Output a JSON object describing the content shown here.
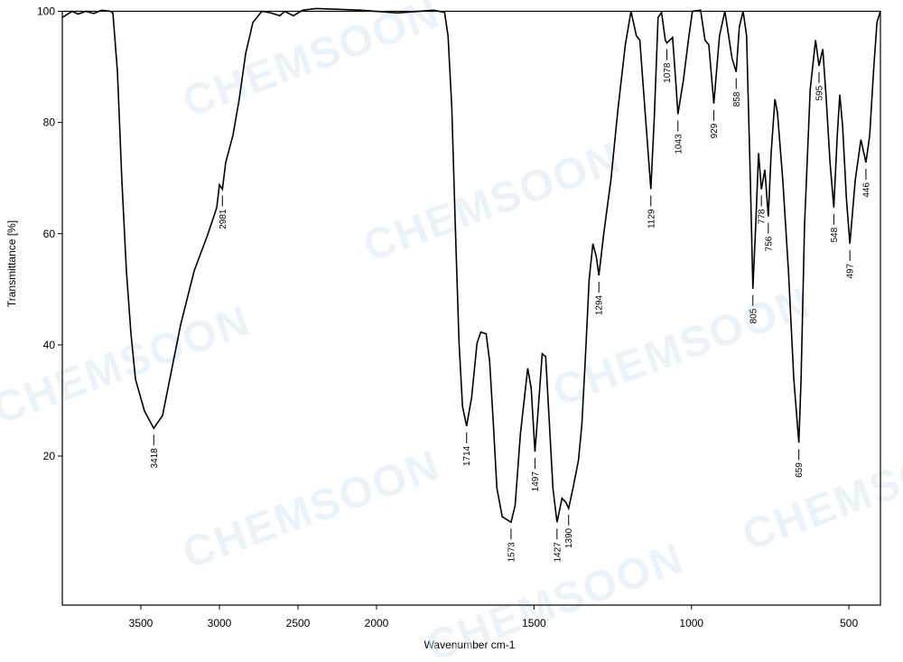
{
  "chart_data": {
    "type": "line",
    "x_label": "Wavenumber cm-1",
    "y_label": "Transmittance [%]",
    "watermark": "CHEMSOON",
    "color": "#000000",
    "xlim": [
      4000,
      400
    ],
    "x_scale_break": 2000,
    "xticks": [
      3500,
      3000,
      2500,
      2000,
      1500,
      1000,
      500
    ],
    "ylim": [
      -6.8,
      100
    ],
    "yticks": [
      20,
      40,
      60,
      80,
      100
    ],
    "x": [
      4000,
      3937,
      3900,
      3850,
      3800,
      3750,
      3695,
      3678,
      3649,
      3621,
      3592,
      3563,
      3534,
      3477,
      3418,
      3362,
      3305,
      3247,
      3161,
      3075,
      3017,
      3000,
      2981,
      2960,
      2914,
      2874,
      2833,
      2787,
      2730,
      2672,
      2615,
      2586,
      2529,
      2471,
      2385,
      2098,
      1934,
      1819,
      1784,
      1773,
      1761,
      1750,
      1738,
      1727,
      1714,
      1698,
      1681,
      1669,
      1652,
      1641,
      1629,
      1618,
      1601,
      1573,
      1560,
      1543,
      1520,
      1509,
      1497,
      1486,
      1474,
      1463,
      1451,
      1440,
      1427,
      1411,
      1399,
      1390,
      1376,
      1359,
      1348,
      1336,
      1325,
      1313,
      1302,
      1294,
      1279,
      1256,
      1233,
      1210,
      1192,
      1175,
      1164,
      1146,
      1129,
      1118,
      1106,
      1095,
      1083,
      1078,
      1060,
      1049,
      1043,
      1026,
      1008,
      997,
      971,
      957,
      945,
      929,
      911,
      894,
      882,
      871,
      858,
      848,
      836,
      825,
      813,
      805,
      796,
      787,
      778,
      767,
      756,
      747,
      735,
      727,
      710,
      692,
      675,
      659,
      652,
      641,
      623,
      606,
      595,
      583,
      572,
      560,
      548,
      537,
      529,
      520,
      508,
      497,
      480,
      462,
      446,
      434,
      422,
      411,
      400
    ],
    "values": [
      98.9,
      100,
      99.5,
      100,
      99.6,
      100.2,
      100,
      99.7,
      89.1,
      69.6,
      53.3,
      42.0,
      33.8,
      28.1,
      25.0,
      27.3,
      35.4,
      43.6,
      53.3,
      59.8,
      64.7,
      68.8,
      68.0,
      72.8,
      77.7,
      84.2,
      92.4,
      98.0,
      100,
      99.7,
      99.2,
      100,
      99.2,
      100.2,
      100.5,
      100.2,
      99.7,
      100.2,
      99.8,
      95.6,
      82.6,
      61.5,
      40.3,
      28.9,
      25.4,
      30.6,
      40.3,
      42.3,
      42.0,
      37.1,
      25.7,
      14.3,
      9.1,
      8.1,
      11.1,
      24.1,
      35.8,
      32.2,
      20.8,
      28.9,
      38.4,
      37.9,
      25.7,
      14.3,
      8.1,
      12.4,
      11.7,
      10.6,
      14.3,
      19.2,
      25.7,
      38.7,
      51.7,
      58.2,
      55.8,
      52.5,
      59.8,
      69.6,
      82.6,
      94.0,
      100,
      95.6,
      94.8,
      81.0,
      68.0,
      81.0,
      98.9,
      99.8,
      94.8,
      94.3,
      95.3,
      86.7,
      81.5,
      87.5,
      95.6,
      100,
      100.2,
      94.8,
      94.0,
      83.4,
      95.6,
      100,
      95.6,
      91.5,
      89.1,
      97.2,
      100,
      95.6,
      69.6,
      50.1,
      61.5,
      74.5,
      68.0,
      71.5,
      63.1,
      74.5,
      84.2,
      81.8,
      69.6,
      53.3,
      33.8,
      22.4,
      33.8,
      61.5,
      85.9,
      94.8,
      90.2,
      93.2,
      84.2,
      72.8,
      64.7,
      77.7,
      85.0,
      79.3,
      66.3,
      58.2,
      69.6,
      76.9,
      72.8,
      77.7,
      89.1,
      98.0,
      100
    ],
    "peak_labels": [
      3418,
      2981,
      1714,
      1573,
      1497,
      1427,
      1390,
      1294,
      1129,
      1078,
      1043,
      929,
      858,
      805,
      778,
      756,
      659,
      595,
      548,
      497,
      446
    ]
  }
}
